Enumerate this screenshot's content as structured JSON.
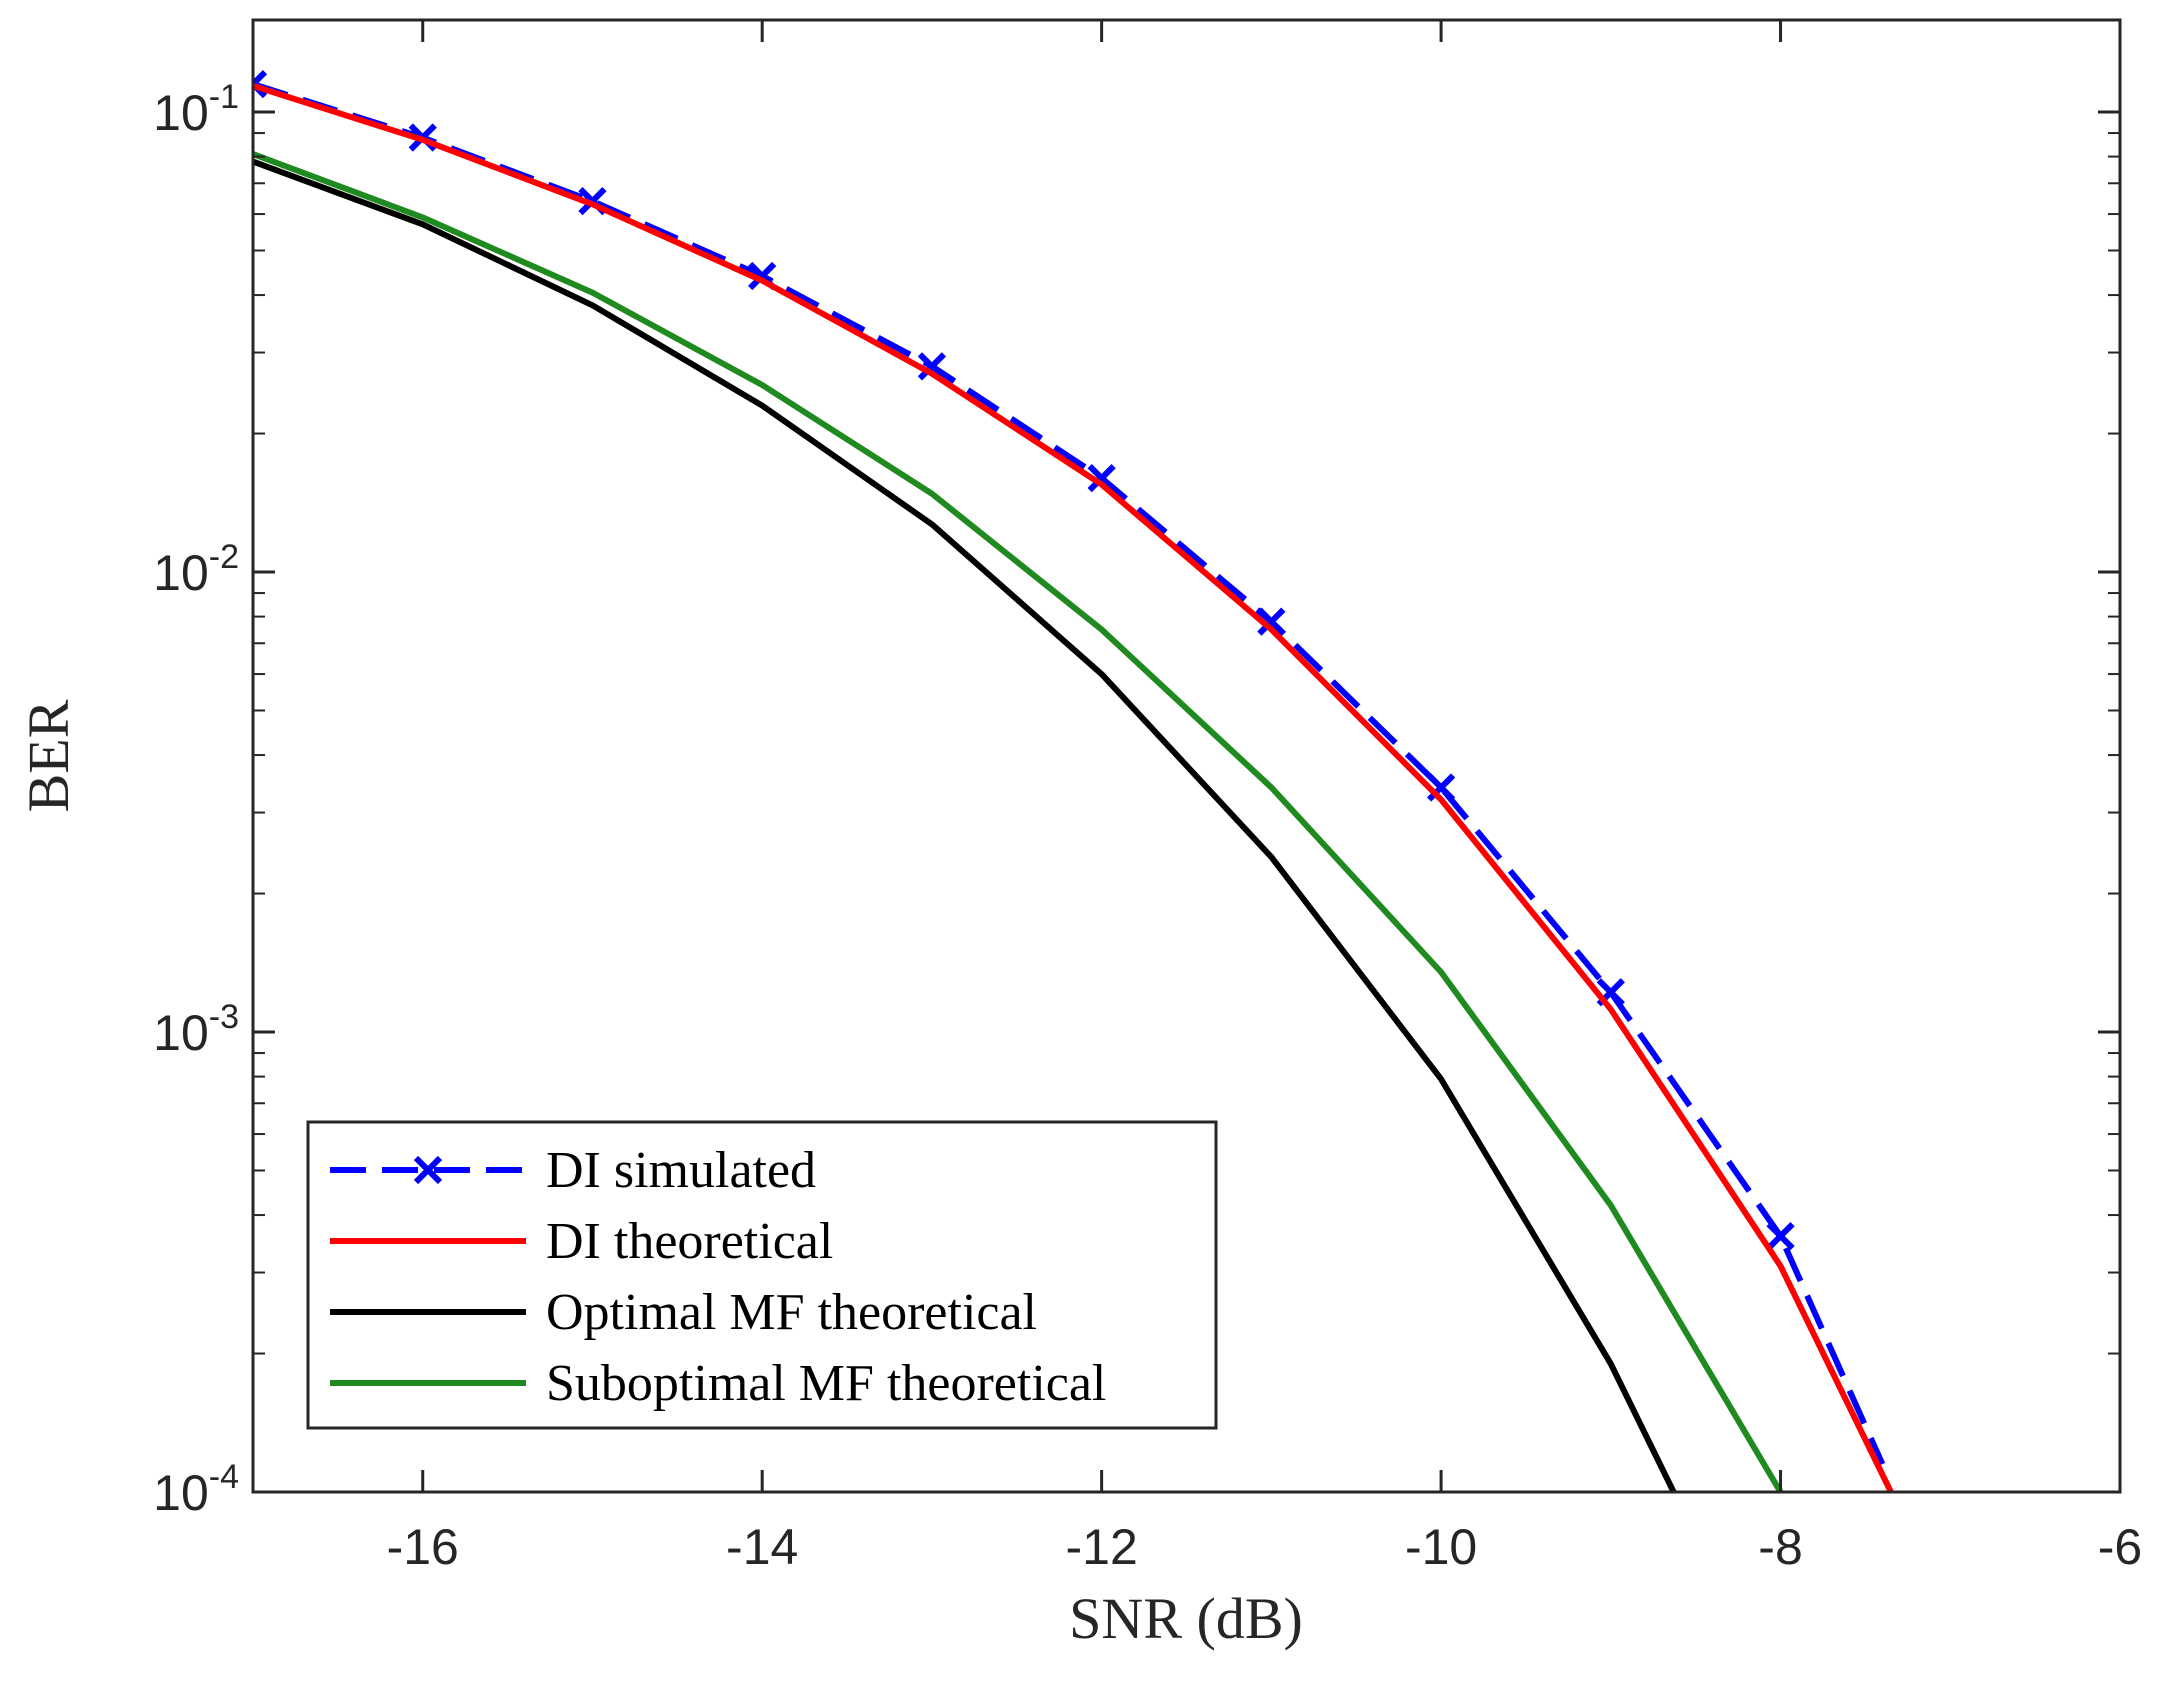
{
  "chart_data": {
    "type": "line",
    "title": "",
    "xlabel": "SNR (dB)",
    "ylabel": "BER",
    "xlim": [
      -17,
      -6
    ],
    "ylim": [
      0.0001,
      0.1585
    ],
    "yscale": "log",
    "grid": false,
    "legend_position": "bottom-left",
    "x_ticks": [
      {
        "value": -16,
        "label": "-16"
      },
      {
        "value": -14,
        "label": "-14"
      },
      {
        "value": -12,
        "label": "-12"
      },
      {
        "value": -10,
        "label": "-10"
      },
      {
        "value": -8,
        "label": "-8"
      },
      {
        "value": -6,
        "label": "-6"
      }
    ],
    "y_ticks": [
      {
        "value": 0.1,
        "base": "10",
        "exp": "-1"
      },
      {
        "value": 0.01,
        "base": "10",
        "exp": "-2"
      },
      {
        "value": 0.001,
        "base": "10",
        "exp": "-3"
      },
      {
        "value": 0.0001,
        "base": "10",
        "exp": "-4"
      }
    ],
    "series": [
      {
        "name": "DI simulated",
        "color": "#0000ff",
        "style": "dashed",
        "marker": "x",
        "x": [
          -17,
          -16,
          -15,
          -14,
          -13,
          -12,
          -11,
          -10,
          -9,
          -8,
          -7.4
        ],
        "values": [
          0.115,
          0.088,
          0.064,
          0.044,
          0.028,
          0.016,
          0.0078,
          0.0034,
          0.00122,
          0.00036,
          0.000115
        ]
      },
      {
        "name": "DI theoretical",
        "color": "#ff0000",
        "style": "solid",
        "marker": "none",
        "x": [
          -17,
          -16,
          -15,
          -14,
          -13,
          -12,
          -11,
          -10,
          -9,
          -8,
          -7.35
        ],
        "values": [
          0.114,
          0.087,
          0.063,
          0.043,
          0.027,
          0.0155,
          0.0075,
          0.0032,
          0.00112,
          0.00031,
          0.0001
        ]
      },
      {
        "name": "Optimal MF theoretical",
        "color": "#000000",
        "style": "solid",
        "marker": "none",
        "x": [
          -17,
          -16,
          -15,
          -14,
          -13,
          -12,
          -11,
          -10,
          -9,
          -8.63
        ],
        "values": [
          0.078,
          0.057,
          0.038,
          0.023,
          0.0127,
          0.006,
          0.0024,
          0.00079,
          0.00019,
          0.0001
        ]
      },
      {
        "name": "Suboptimal MF theoretical",
        "color": "#1f8a1f",
        "style": "solid",
        "marker": "none",
        "x": [
          -17,
          -16,
          -15,
          -14,
          -13,
          -12,
          -11,
          -10,
          -9,
          -8
        ],
        "values": [
          0.081,
          0.059,
          0.0405,
          0.0255,
          0.0148,
          0.0075,
          0.0034,
          0.00135,
          0.00042,
          0.0001
        ]
      }
    ]
  }
}
